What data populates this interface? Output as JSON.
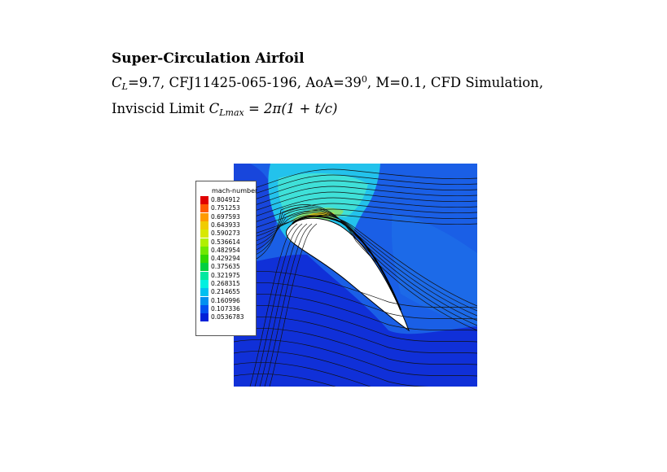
{
  "header": {
    "title": "Super-Circulation Airfoil",
    "line1_cl_symbol": "C",
    "line1_cl_sub": "L",
    "line1_text_a": "=9.7, CFJ11425-065-196, AoA=39",
    "line1_sup": "0",
    "line1_text_b": ", M=0.1, CFD Simulation,",
    "line2_prefix": "Inviscid Limit ",
    "line2_cl_symbol": "C",
    "line2_cl_sub": "Lmax",
    "line2_formula": " = 2π(1 + t/c)"
  },
  "chart_data": {
    "type": "heatmap",
    "title": "Super-Circulation Airfoil",
    "subtitle": "CL=9.7, CFJ11425-065-196, AoA=39°, M=0.1, CFD Simulation, Inviscid Limit CLmax = 2π(1 + t/c)",
    "variable": "mach-number",
    "legend": {
      "title": "mach-number",
      "levels": [
        "0.804912",
        "0.751253",
        "0.697593",
        "0.643933",
        "0.590273",
        "0.536614",
        "0.482954",
        "0.429294",
        "0.375635",
        "0.321975",
        "0.268315",
        "0.214655",
        "0.160996",
        "0.107336",
        "0.0536783"
      ],
      "colors": [
        "#e00000",
        "#ff5a00",
        "#ff9a00",
        "#f0cc00",
        "#d8e800",
        "#b0f000",
        "#70e800",
        "#30d800",
        "#00d040",
        "#00e8a0",
        "#00f0e0",
        "#00c0f0",
        "#0090f0",
        "#0050f0",
        "#0020d8"
      ],
      "placement": "left"
    },
    "field_colors": {
      "free_stream": "#1a5fe6",
      "low_speed": "#1030d8",
      "medium": "#23c2ec",
      "high_speed_core": "#7fe07a",
      "peak": "#f2e21e",
      "airfoil": "#ffffff",
      "streamlines": "#111111"
    },
    "grid": false
  }
}
